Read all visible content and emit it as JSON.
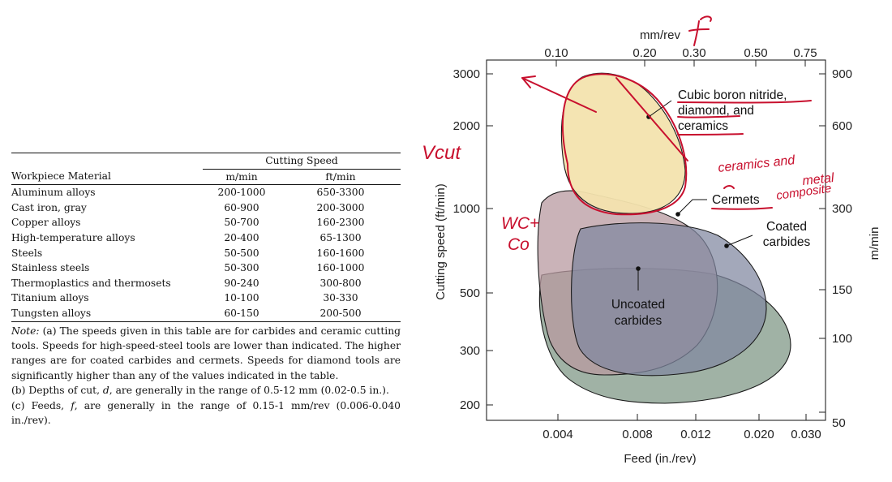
{
  "table": {
    "group_header": "Cutting Speed",
    "col_material": "Workpiece Material",
    "col_m": "m/min",
    "col_ft": "ft/min",
    "rows": [
      {
        "material": "Aluminum alloys",
        "m": "200-1000",
        "ft": "650-3300"
      },
      {
        "material": "Cast iron, gray",
        "m": "60-900",
        "ft": "200-3000"
      },
      {
        "material": "Copper alloys",
        "m": "50-700",
        "ft": "160-2300"
      },
      {
        "material": "High-temperature alloys",
        "m": "20-400",
        "ft": "65-1300"
      },
      {
        "material": "Steels",
        "m": "50-500",
        "ft": "160-1600"
      },
      {
        "material": "Stainless steels",
        "m": "50-300",
        "ft": "160-1000"
      },
      {
        "material": "Thermoplastics and thermosets",
        "m": "90-240",
        "ft": "300-800"
      },
      {
        "material": "Titanium alloys",
        "m": "10-100",
        "ft": "30-330"
      },
      {
        "material": "Tungsten alloys",
        "m": "60-150",
        "ft": "200-500"
      }
    ],
    "note_label": "Note:",
    "note_a": "(a) The speeds given in this table are for carbides and ceramic cutting tools. Speeds for high-speed-steel tools are lower than indicated. The higher ranges are for coated carbides and cermets. Speeds for diamond tools are significantly higher than any of the values indicated in the table.",
    "note_b_1": "(b) Depths of cut, ",
    "note_b_var": "d",
    "note_b_2": ", are generally in the range of 0.5-12 mm (0.02-0.5 in.).",
    "note_c_1": "(c) Feeds, ",
    "note_c_var": "f",
    "note_c_2": ", are generally in the range of 0.15-1 mm/rev (0.006-0.040 in./rev)."
  },
  "chart_data": {
    "type": "area",
    "xlabel_bottom": "Feed (in./rev)",
    "xlabel_top": "mm/rev",
    "ylabel_left": "Cutting speed (ft/min)",
    "ylabel_right": "m/min",
    "x_scale": "log",
    "y_scale": "log",
    "x_ticks_bottom": [
      "0.004",
      "0.008",
      "0.012",
      "0.020",
      "0.030"
    ],
    "x_ticks_top": [
      "0.10",
      "0.20",
      "0.30",
      "0.50",
      "0.75"
    ],
    "y_ticks_left": [
      "200",
      "300",
      "500",
      "1000",
      "2000",
      "3000"
    ],
    "y_ticks_right": [
      "50",
      "100",
      "150",
      "300",
      "600",
      "900"
    ],
    "regions": [
      {
        "name": "Cubic boron nitride, diamond, and ceramics",
        "color": "#f3e3ae"
      },
      {
        "name": "Cermets",
        "color": "#b89aa0"
      },
      {
        "name": "Coated carbides",
        "color": "#7f86a0"
      },
      {
        "name": "Uncoated carbides",
        "color": "#8fa595"
      }
    ],
    "labels": {
      "cbn_line1": "Cubic boron nitride,",
      "cbn_line2": "diamond, and",
      "cbn_line3": "ceramics",
      "cermets": "Cermets",
      "coated_line1": "Coated",
      "coated_line2": "carbides",
      "uncoated_line1": "Uncoated",
      "uncoated_line2": "carbides"
    }
  },
  "annotations": {
    "f": "f",
    "vcut": "Vcut",
    "wc_co_1": "WC+",
    "wc_co_2": "Co",
    "ceramics_metal_1": "ceramics and",
    "ceramics_metal_2": "metal",
    "ceramics_metal_3": "composite"
  },
  "colors": {
    "annotation_red": "#c8102e",
    "region_outline": "#1a1a1a"
  }
}
